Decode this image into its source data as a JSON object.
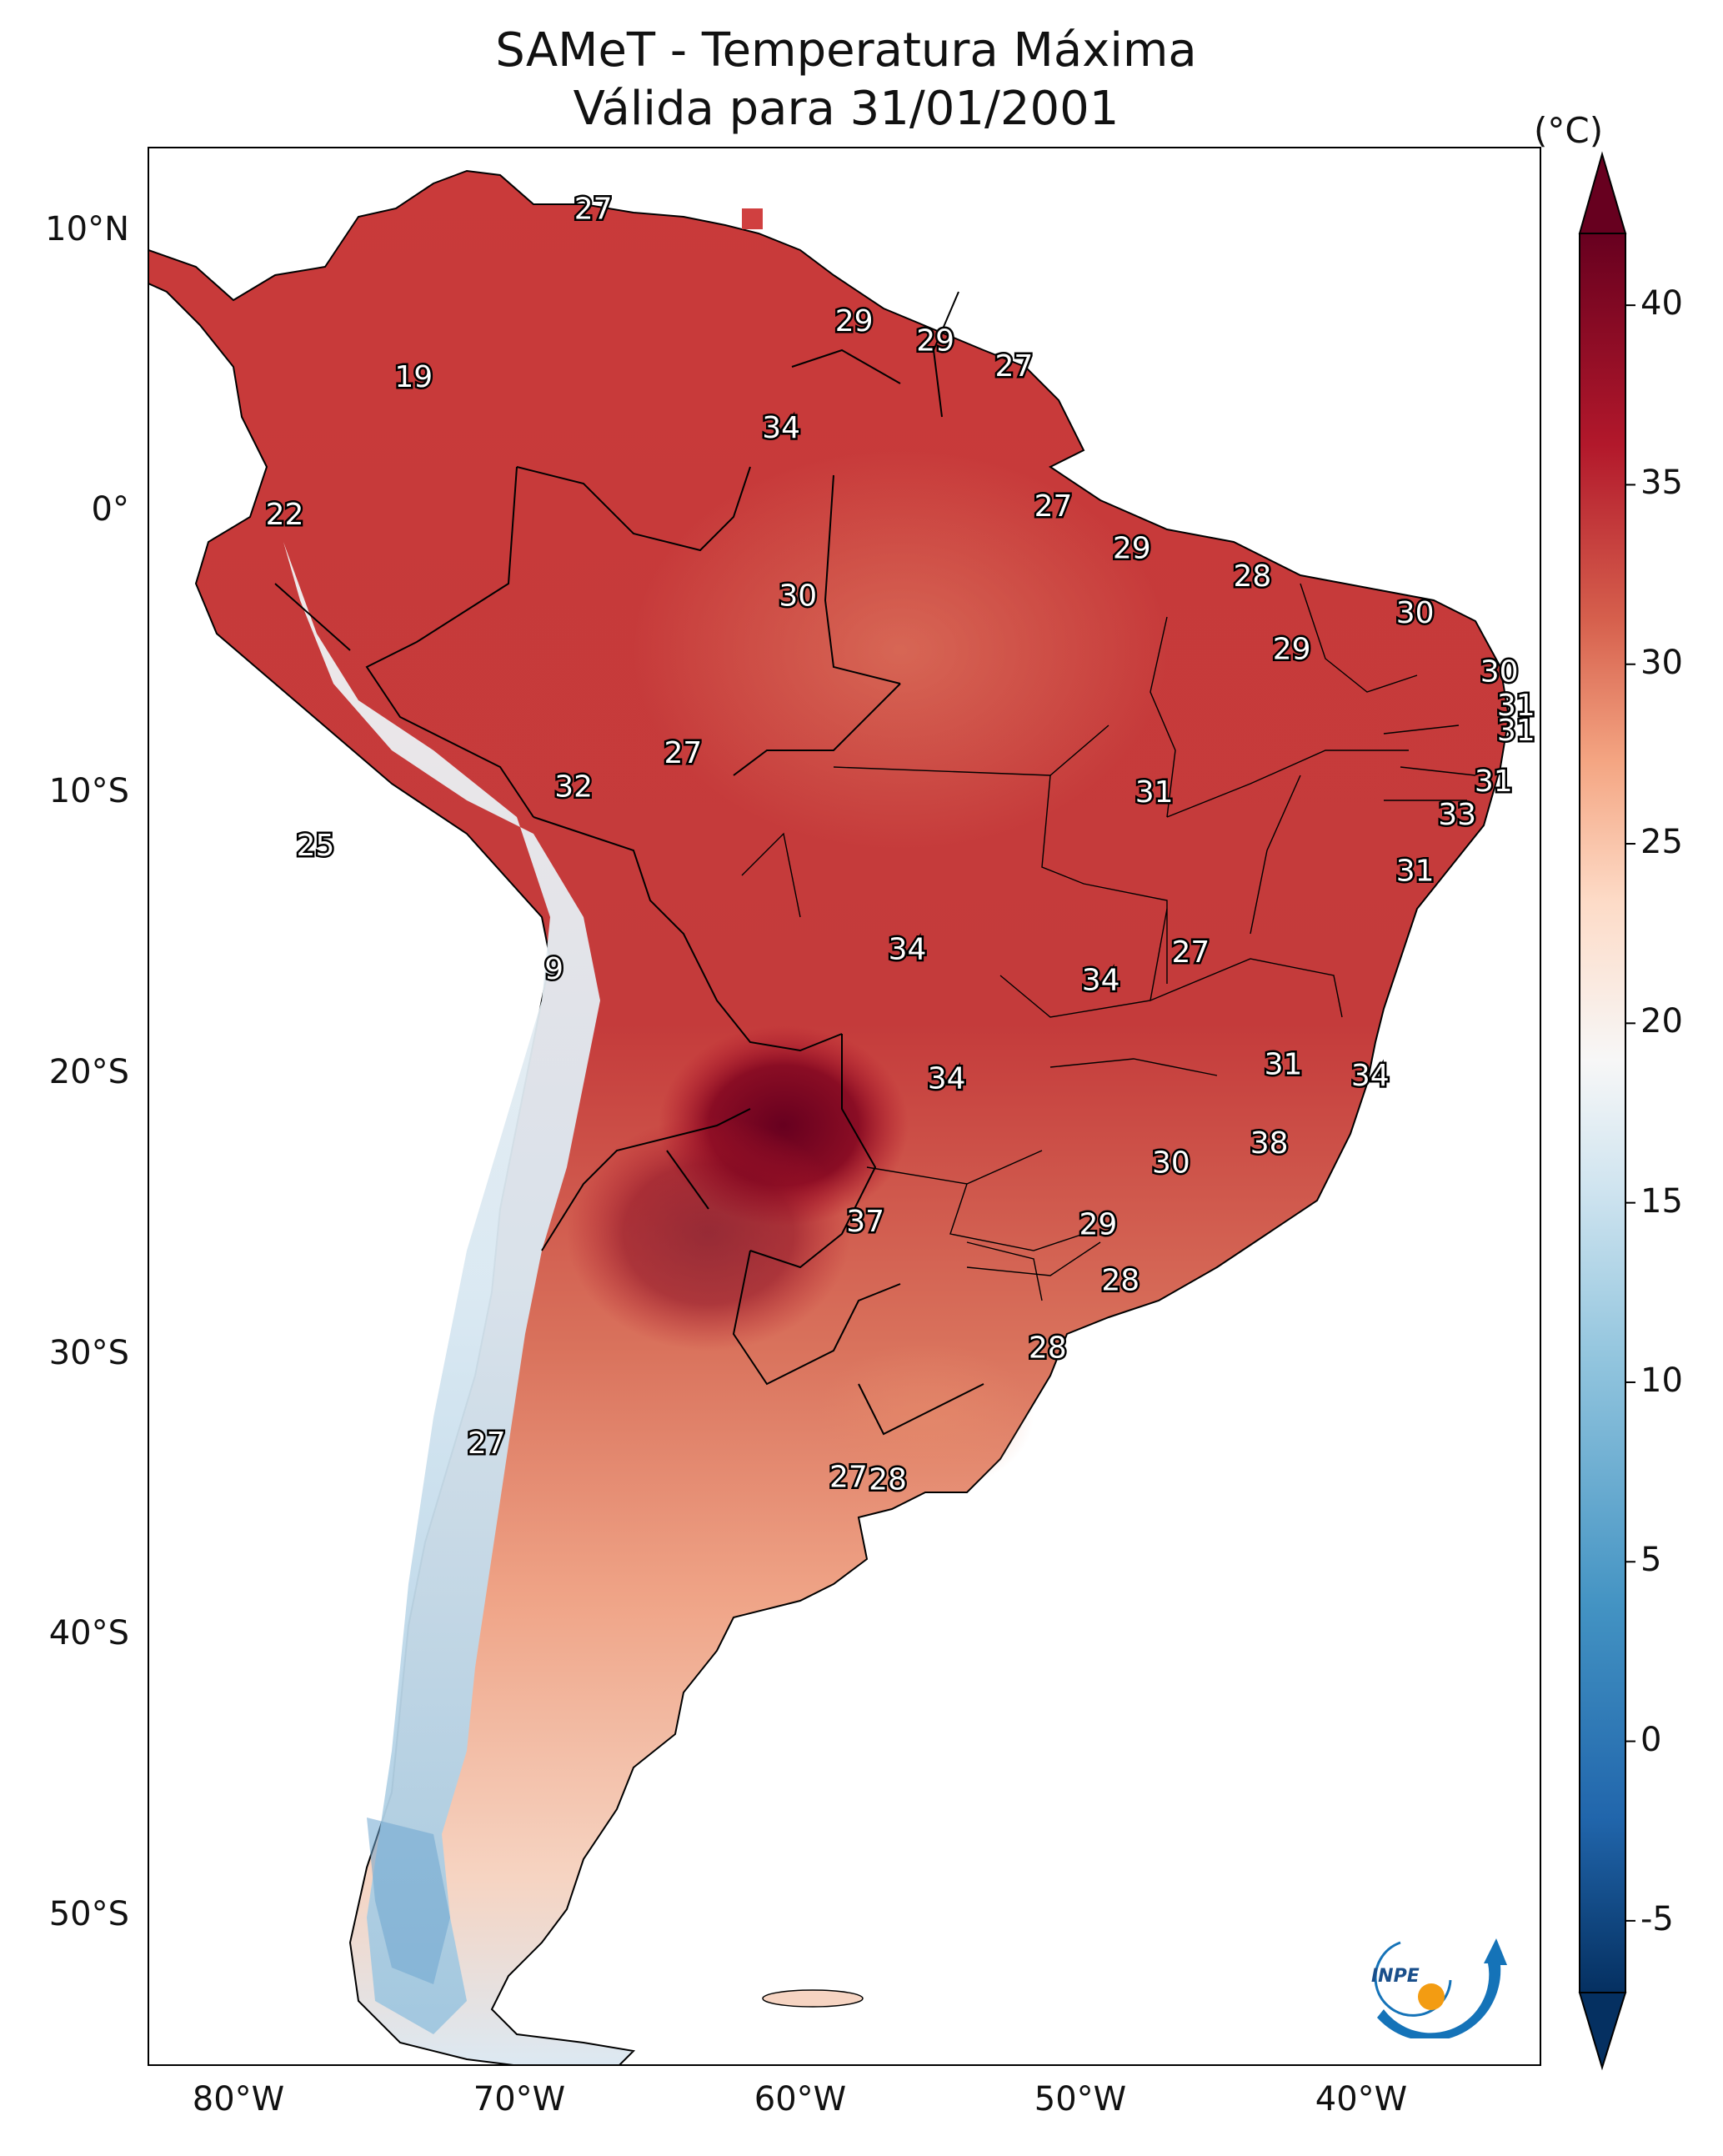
{
  "title": {
    "line1": "SAMeT - Temperatura Máxima",
    "line2": "Válida para 31/01/2001"
  },
  "axes": {
    "lon_ticks": [
      "80°W",
      "70°W",
      "60°W",
      "50°W",
      "40°W"
    ],
    "lat_ticks": [
      "10°N",
      "0°",
      "10°S",
      "20°S",
      "30°S",
      "40°S",
      "50°S"
    ]
  },
  "colorbar": {
    "unit": "(°C)",
    "ticks": [
      "40",
      "35",
      "30",
      "25",
      "20",
      "15",
      "10",
      "5",
      "0",
      "-5"
    ],
    "range": [
      -7,
      42
    ],
    "colors": {
      "cold": "#053061",
      "mid": "#f7f7f7",
      "hot": "#67001f"
    }
  },
  "labels": [
    {
      "value": "27",
      "lon": -67.2,
      "lat": 10.6
    },
    {
      "value": "19",
      "lon": -73.6,
      "lat": 4.6
    },
    {
      "value": "29",
      "lon": -57.9,
      "lat": 6.6
    },
    {
      "value": "29",
      "lon": -55.0,
      "lat": 5.9
    },
    {
      "value": "27",
      "lon": -52.2,
      "lat": 5.0
    },
    {
      "value": "34",
      "lon": -60.5,
      "lat": 2.8
    },
    {
      "value": "22",
      "lon": -78.2,
      "lat": -0.3
    },
    {
      "value": "27",
      "lon": -50.8,
      "lat": 0.0
    },
    {
      "value": "29",
      "lon": -48.0,
      "lat": -1.5
    },
    {
      "value": "28",
      "lon": -43.7,
      "lat": -2.5
    },
    {
      "value": "30",
      "lon": -59.9,
      "lat": -3.2
    },
    {
      "value": "30",
      "lon": -37.9,
      "lat": -3.8
    },
    {
      "value": "29",
      "lon": -42.3,
      "lat": -5.1
    },
    {
      "value": "30",
      "lon": -34.9,
      "lat": -5.9
    },
    {
      "value": "31",
      "lon": -34.3,
      "lat": -7.1
    },
    {
      "value": "31",
      "lon": -34.3,
      "lat": -8.0
    },
    {
      "value": "27",
      "lon": -64.0,
      "lat": -8.8
    },
    {
      "value": "32",
      "lon": -67.9,
      "lat": -10.0
    },
    {
      "value": "31",
      "lon": -47.2,
      "lat": -10.2
    },
    {
      "value": "31",
      "lon": -35.1,
      "lat": -9.8
    },
    {
      "value": "33",
      "lon": -36.4,
      "lat": -11.0
    },
    {
      "value": "25",
      "lon": -77.1,
      "lat": -12.1
    },
    {
      "value": "31",
      "lon": -37.9,
      "lat": -13.0
    },
    {
      "value": "34",
      "lon": -56.0,
      "lat": -15.8
    },
    {
      "value": "27",
      "lon": -45.9,
      "lat": -15.9
    },
    {
      "value": "9",
      "lon": -68.6,
      "lat": -16.5
    },
    {
      "value": "34",
      "lon": -49.1,
      "lat": -16.9
    },
    {
      "value": "34",
      "lon": -54.6,
      "lat": -20.4
    },
    {
      "value": "31",
      "lon": -42.6,
      "lat": -19.9
    },
    {
      "value": "34",
      "lon": -39.5,
      "lat": -20.3
    },
    {
      "value": "38",
      "lon": -43.1,
      "lat": -22.7
    },
    {
      "value": "30",
      "lon": -46.6,
      "lat": -23.4
    },
    {
      "value": "37",
      "lon": -57.5,
      "lat": -25.5
    },
    {
      "value": "29",
      "lon": -49.2,
      "lat": -25.6
    },
    {
      "value": "28",
      "lon": -48.4,
      "lat": -27.6
    },
    {
      "value": "28",
      "lon": -51.0,
      "lat": -30.0
    },
    {
      "value": "27",
      "lon": -71.0,
      "lat": -33.4
    },
    {
      "value": "27",
      "lon": -58.1,
      "lat": -34.6
    },
    {
      "value": "28",
      "lon": -56.7,
      "lat": -34.7
    }
  ],
  "logo": {
    "text": "INPE"
  }
}
